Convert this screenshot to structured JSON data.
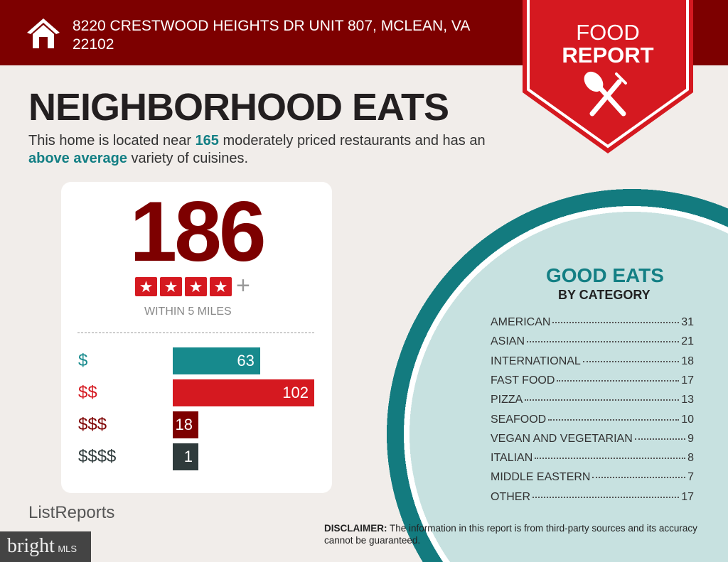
{
  "header": {
    "address": "8220 CRESTWOOD HEIGHTS DR UNIT 807, MCLEAN, VA 22102"
  },
  "badge": {
    "line1": "FOOD",
    "line2": "REPORT",
    "icon": "spoon-fork-icon"
  },
  "title": "NEIGHBORHOOD EATS",
  "description": {
    "pre": "This home is located near ",
    "count": "165",
    "mid": " moderately priced restaurants and has an ",
    "variety": "above average",
    "post": " variety of cuisines."
  },
  "summary": {
    "total": "186",
    "stars": 4,
    "plus": "+",
    "within": "WITHIN 5 MILES",
    "prices": [
      {
        "label": "$",
        "value": 63,
        "color": "#178a8d"
      },
      {
        "label": "$$",
        "value": 102,
        "color": "#d51920"
      },
      {
        "label": "$$$",
        "value": 18,
        "color": "#7d0000"
      },
      {
        "label": "$$$$",
        "value": 1,
        "color": "#2f3b3c"
      }
    ]
  },
  "good_eats": {
    "title": "GOOD EATS",
    "subtitle": "BY CATEGORY",
    "categories": [
      {
        "name": "AMERICAN",
        "count": "31"
      },
      {
        "name": "ASIAN",
        "count": "21"
      },
      {
        "name": "INTERNATIONAL",
        "count": "18"
      },
      {
        "name": "FAST FOOD",
        "count": "17"
      },
      {
        "name": "PIZZA",
        "count": "13"
      },
      {
        "name": "SEAFOOD",
        "count": "10"
      },
      {
        "name": "VEGAN AND VEGETARIAN",
        "count": "9"
      },
      {
        "name": "ITALIAN",
        "count": "8"
      },
      {
        "name": "MIDDLE EASTERN",
        "count": "7"
      },
      {
        "name": "OTHER",
        "count": "17"
      }
    ]
  },
  "footer": {
    "logo": "ListReports",
    "disclaimer_label": "DISCLAIMER:",
    "disclaimer": " The information in this report is from third-party sources and its accuracy cannot be guaranteed.",
    "watermark": "bright",
    "watermark_sub": "MLS"
  }
}
